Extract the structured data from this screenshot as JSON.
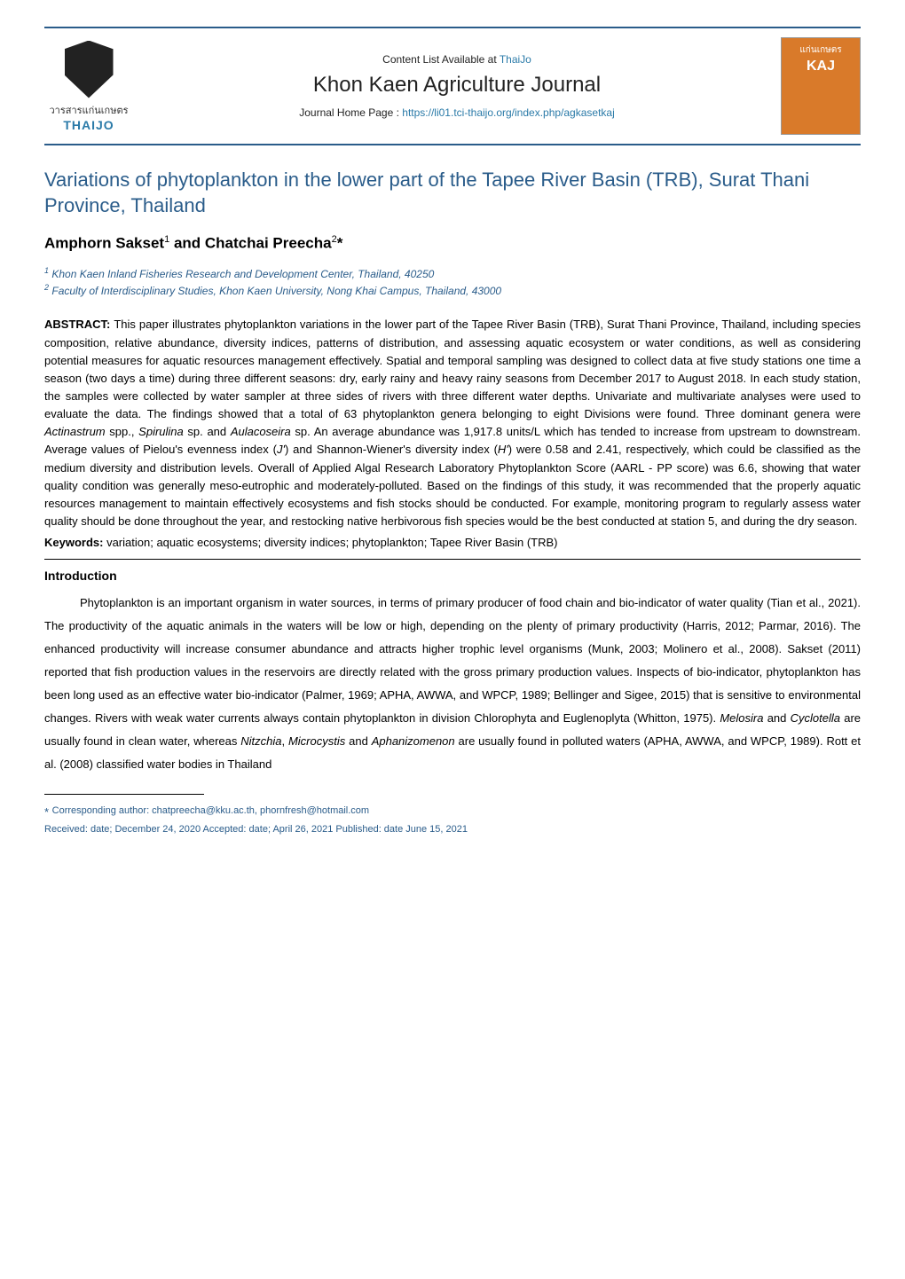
{
  "colors": {
    "accent_blue": "#2a5c8a",
    "link_blue": "#2a7aa8",
    "text_black": "#000000",
    "background": "#ffffff",
    "cover_orange": "#d97a2a"
  },
  "typography": {
    "title_fontsize": 22,
    "authors_fontsize": 17,
    "body_fontsize": 13,
    "affiliation_fontsize": 12,
    "footnote_fontsize": 11,
    "journal_name_fontsize": 24,
    "body_line_height": 2.0,
    "abstract_line_height": 1.55
  },
  "header": {
    "left_logo": {
      "thai_label": "วารสารแก่นเกษตร",
      "brand": "THAIJO"
    },
    "content_list_prefix": "Content List Available at ",
    "content_list_link": "ThaiJo",
    "journal_name": "Khon Kaen Agriculture Journal",
    "home_prefix": "Journal Home Page : ",
    "home_url": "https://li01.tci-thaijo.org/index.php/agkasetkaj",
    "right_logo": {
      "thai_small": "แก่นเกษตร",
      "kaj": "KAJ"
    }
  },
  "article": {
    "title": "Variations of phytoplankton in the lower part of the Tapee River Basin (TRB), Surat Thani Province, Thailand",
    "authors_html": "Amphorn Sakset¹ and Chatchai Preecha²*",
    "affiliations": [
      {
        "num": "1",
        "text": "Khon Kaen Inland Fisheries Research and Development Center, Thailand, 40250"
      },
      {
        "num": "2",
        "text": "Faculty of Interdisciplinary Studies, Khon Kaen University, Nong Khai Campus, Thailand, 43000"
      }
    ],
    "abstract_label": "ABSTRACT: ",
    "abstract": "This paper illustrates phytoplankton variations in the lower part of the Tapee River Basin (TRB), Surat Thani Province, Thailand, including species composition, relative abundance, diversity indices, patterns of distribution, and assessing aquatic ecosystem or water conditions, as well as considering potential measures for aquatic resources management effectively. Spatial and temporal sampling was designed to collect data at five study stations one time a season (two days a time) during three different seasons: dry, early rainy and heavy rainy seasons from December 2017 to August 2018. In each study station, the samples were collected by water sampler at three sides of rivers with three different water depths. Univariate and multivariate analyses were used to evaluate the data. The findings showed that a total of 63 phytoplankton genera belonging to eight Divisions were found. Three dominant genera were Actinastrum spp., Spirulina sp. and Aulacoseira sp. An average abundance was 1,917.8 units/L which has tended to increase from upstream to downstream. Average values of Pielou's evenness index (J') and Shannon-Wiener's diversity index (H') were 0.58 and 2.41, respectively, which could be classified as the medium diversity and distribution levels. Overall of Applied Algal Research Laboratory Phytoplankton Score (AARL - PP score) was 6.6, showing that water quality condition was generally meso-eutrophic and moderately-polluted. Based on the findings of this study, it was recommended that the properly aquatic resources management to maintain effectively ecosystems and fish stocks should be conducted. For example, monitoring program to regularly assess water quality should be done throughout the year, and restocking native herbivorous fish species would be the best conducted at station 5, and during the dry season.",
    "keywords_label": "Keywords: ",
    "keywords": "variation; aquatic ecosystems; diversity indices; phytoplankton; Tapee River Basin (TRB)",
    "intro_heading": "Introduction",
    "intro_body_html": "Phytoplankton is an important organism in water sources, in terms of primary producer of food chain and bio-indicator of water quality (Tian et al., 2021). The productivity of the aquatic animals in the waters will be low or high, depending on the plenty of primary productivity (Harris, 2012; Parmar, 2016). The enhanced productivity will increase consumer abundance and attracts higher trophic level organisms (Munk, 2003; Molinero et al., 2008). Sakset (2011) reported that fish production values in the reservoirs are directly related with the gross primary production values. Inspects of bio-indicator, phytoplankton has been long used as an effective water bio-indicator (Palmer, 1969; APHA, AWWA, and WPCP, 1989; Bellinger and Sigee, 2015) that is sensitive to environmental changes. Rivers with weak water currents always contain phytoplankton in division Chlorophyta and Euglenoplyta (Whitton, 1975). <span class=\"italic\">Melosira</span> and <span class=\"italic\">Cyclotella</span> are usually found in clean water, whereas <span class=\"italic\">Nitzchia</span>, <span class=\"italic\">Microcystis</span> and <span class=\"italic\">Aphanizomenon</span> are usually found in polluted waters (APHA, AWWA, and WPCP, 1989). Rott et al. (2008) classified water bodies in Thailand"
  },
  "footnotes": {
    "corresponding_prefix": "* ",
    "corresponding": "Corresponding author: chatpreecha@kku.ac.th, phornfresh@hotmail.com",
    "dates": "Received: date; December 24, 2020 Accepted: date; April 26, 2021 Published: date June 15, 2021"
  }
}
